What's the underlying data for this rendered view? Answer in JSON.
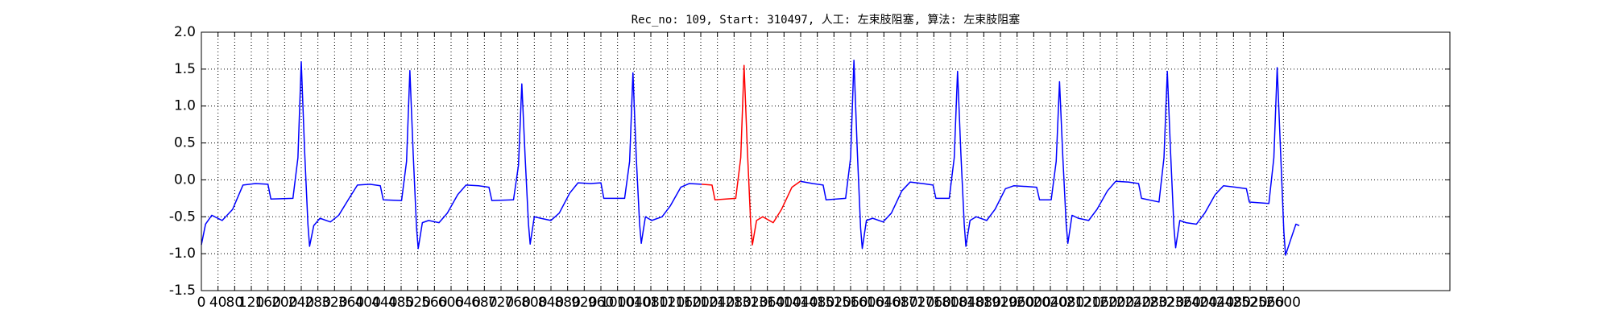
{
  "chart_data": {
    "type": "line",
    "title": "Rec_no: 109, Start: 310497, 人工: 左束肢阻塞, 算法: 左束肢阻塞",
    "xlim": [
      0,
      3000
    ],
    "ylim": [
      -1.5,
      2.0
    ],
    "xticks": [
      0,
      40,
      80,
      120,
      160,
      200,
      240,
      280,
      320,
      360,
      400,
      440,
      480,
      520,
      560,
      600,
      640,
      680,
      720,
      760,
      800,
      840,
      880,
      920,
      960,
      1000,
      1040,
      1080,
      1120,
      1160,
      1200,
      1240,
      1280,
      1320,
      1360,
      1400,
      1440,
      1480,
      1520,
      1560,
      1600,
      1640,
      1680,
      1720,
      1760,
      1800,
      1840,
      1880,
      1920,
      1960,
      2000,
      2040,
      2080,
      2120,
      2160,
      2200,
      2240,
      2280,
      2320,
      2360,
      2400,
      2440,
      2480,
      2520,
      2560,
      2600
    ],
    "yticks": [
      {
        "value": -1.5,
        "label": "-1.5"
      },
      {
        "value": -1,
        "label": "-1.0"
      },
      -0.5,
      {
        "value": 0,
        "label": "0.0"
      },
      0.5,
      {
        "value": 1,
        "label": "1.0"
      },
      1.5,
      {
        "value": 2,
        "label": "2.0"
      }
    ],
    "grid": true,
    "x": [
      0,
      10,
      25,
      50,
      75,
      100,
      130,
      160,
      167,
      220,
      232,
      240,
      248,
      256,
      260,
      270,
      285,
      310,
      330,
      355,
      375,
      405,
      430,
      437,
      481,
      493,
      501,
      509,
      517,
      521,
      531,
      546,
      571,
      591,
      616,
      636,
      666,
      691,
      698,
      750,
      762,
      770,
      778,
      786,
      790,
      800,
      815,
      840,
      860,
      885,
      905,
      935,
      960,
      967,
      1017,
      1029,
      1037,
      1045,
      1053,
      1057,
      1067,
      1082,
      1107,
      1127,
      1152,
      1172,
      1202,
      1227,
      1234,
      1284,
      1296,
      1304,
      1312,
      1320,
      1324,
      1334,
      1349,
      1374,
      1394,
      1419,
      1439,
      1469,
      1494,
      1501,
      1548,
      1560,
      1568,
      1576,
      1584,
      1588,
      1598,
      1613,
      1638,
      1658,
      1683,
      1703,
      1733,
      1758,
      1765,
      1797,
      1809,
      1817,
      1825,
      1833,
      1837,
      1847,
      1862,
      1887,
      1907,
      1932,
      1952,
      1982,
      2007,
      2014,
      2042,
      2054,
      2062,
      2070,
      2078,
      2082,
      2092,
      2107,
      2132,
      2152,
      2177,
      2197,
      2227,
      2252,
      2259,
      2301,
      2313,
      2321,
      2329,
      2337,
      2341,
      2351,
      2366,
      2391,
      2411,
      2436,
      2456,
      2486,
      2511,
      2518,
      2565,
      2577,
      2585,
      2593,
      2601,
      2605,
      2618,
      2630,
      2638
    ],
    "series": [
      {
        "color": "#0000ff",
        "values": [
          -0.88,
          -0.6,
          -0.48,
          -0.55,
          -0.4,
          -0.07,
          -0.05,
          -0.06,
          -0.26,
          -0.25,
          0.3,
          1.6,
          0.4,
          -0.6,
          -0.9,
          -0.62,
          -0.52,
          -0.57,
          -0.48,
          -0.25,
          -0.07,
          -0.06,
          -0.08,
          -0.27,
          -0.28,
          0.25,
          1.48,
          0.35,
          -0.65,
          -0.93,
          -0.58,
          -0.55,
          -0.58,
          -0.45,
          -0.2,
          -0.07,
          -0.08,
          -0.1,
          -0.28,
          -0.27,
          0.2,
          1.3,
          0.3,
          -0.6,
          -0.87,
          -0.5,
          -0.52,
          -0.55,
          -0.45,
          -0.18,
          -0.04,
          -0.05,
          -0.04,
          -0.25,
          -0.25,
          0.25,
          1.45,
          0.3,
          -0.6,
          -0.86,
          -0.5,
          -0.55,
          -0.5,
          -0.35,
          -0.1,
          -0.05,
          -0.06,
          null,
          null,
          null,
          null,
          null,
          null,
          null,
          null,
          null,
          null,
          null,
          null,
          null,
          -0.02,
          -0.05,
          -0.07,
          -0.27,
          -0.25,
          0.3,
          1.62,
          0.4,
          -0.65,
          -0.93,
          -0.55,
          -0.52,
          -0.57,
          -0.45,
          -0.15,
          -0.03,
          -0.05,
          -0.07,
          -0.25,
          -0.25,
          0.3,
          1.47,
          0.35,
          -0.6,
          -0.9,
          -0.55,
          -0.5,
          -0.55,
          -0.4,
          -0.12,
          -0.08,
          -0.09,
          -0.1,
          -0.27,
          -0.27,
          0.25,
          1.33,
          0.3,
          -0.6,
          -0.86,
          -0.48,
          -0.52,
          -0.55,
          -0.4,
          -0.15,
          -0.02,
          -0.03,
          -0.05,
          -0.25,
          -0.3,
          0.3,
          1.47,
          0.35,
          -0.65,
          -0.92,
          -0.55,
          -0.58,
          -0.6,
          -0.45,
          -0.2,
          -0.08,
          -0.1,
          -0.12,
          -0.3,
          -0.32,
          0.3,
          1.52,
          0.4,
          -0.7,
          -1.02,
          -0.8,
          -0.6,
          -0.62
        ]
      },
      {
        "color": "#ff0000",
        "values": [
          null,
          null,
          null,
          null,
          null,
          null,
          null,
          null,
          null,
          null,
          null,
          null,
          null,
          null,
          null,
          null,
          null,
          null,
          null,
          null,
          null,
          null,
          null,
          null,
          null,
          null,
          null,
          null,
          null,
          null,
          null,
          null,
          null,
          null,
          null,
          null,
          null,
          null,
          null,
          null,
          null,
          null,
          null,
          null,
          null,
          null,
          null,
          null,
          null,
          null,
          null,
          null,
          null,
          null,
          null,
          null,
          null,
          null,
          null,
          null,
          null,
          null,
          null,
          null,
          null,
          null,
          -0.06,
          -0.07,
          -0.27,
          -0.25,
          0.3,
          1.55,
          0.4,
          -0.6,
          -0.88,
          -0.55,
          -0.5,
          -0.58,
          -0.4,
          -0.1,
          -0.02,
          null,
          null,
          null,
          null,
          null,
          null,
          null,
          null,
          null,
          null,
          null,
          null,
          null,
          null,
          null,
          null,
          null,
          null,
          null,
          null,
          null,
          null,
          null,
          null,
          null,
          null,
          null,
          null,
          null,
          null,
          null,
          null,
          null,
          null,
          null,
          null,
          null,
          null,
          null,
          null,
          null,
          null,
          null,
          null,
          null,
          null,
          null,
          null,
          null,
          null,
          null,
          null,
          null,
          null,
          null,
          null,
          null,
          null,
          null,
          null,
          null,
          null,
          null,
          null,
          null,
          null,
          null,
          null,
          null,
          null,
          null,
          null
        ]
      }
    ]
  }
}
